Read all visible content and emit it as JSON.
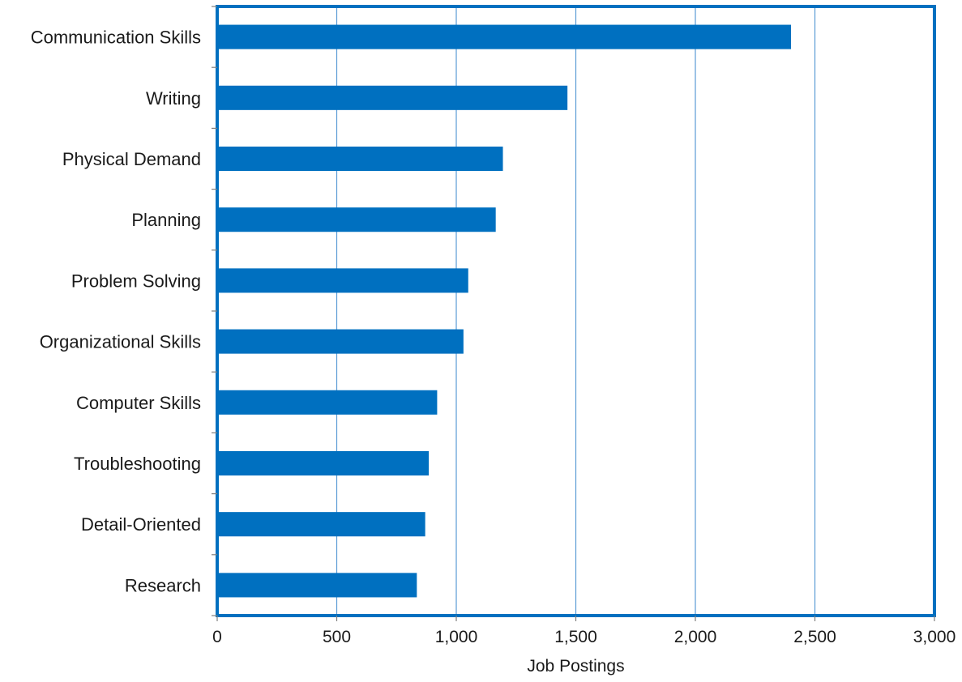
{
  "chart_data": {
    "type": "bar",
    "orientation": "horizontal",
    "title": "",
    "xlabel": "Job Postings",
    "ylabel": "",
    "categories": [
      "Communication Skills",
      "Writing",
      "Physical Demand",
      "Planning",
      "Problem Solving",
      "Organizational Skills",
      "Computer Skills",
      "Troubleshooting",
      "Detail-Oriented",
      "Research"
    ],
    "values": [
      2400,
      1465,
      1195,
      1165,
      1050,
      1030,
      920,
      885,
      870,
      835
    ],
    "xlim": [
      0,
      3000
    ],
    "xticks": [
      0,
      500,
      1000,
      1500,
      2000,
      2500,
      3000
    ],
    "xtick_labels": [
      "0",
      "500",
      "1,000",
      "1,500",
      "2,000",
      "2,500",
      "3,000"
    ],
    "grid": "vertical",
    "legend": "none",
    "colors": {
      "bar": "#0070C0",
      "frame": "#0070C0",
      "gridline": "#5B9BD5"
    }
  }
}
